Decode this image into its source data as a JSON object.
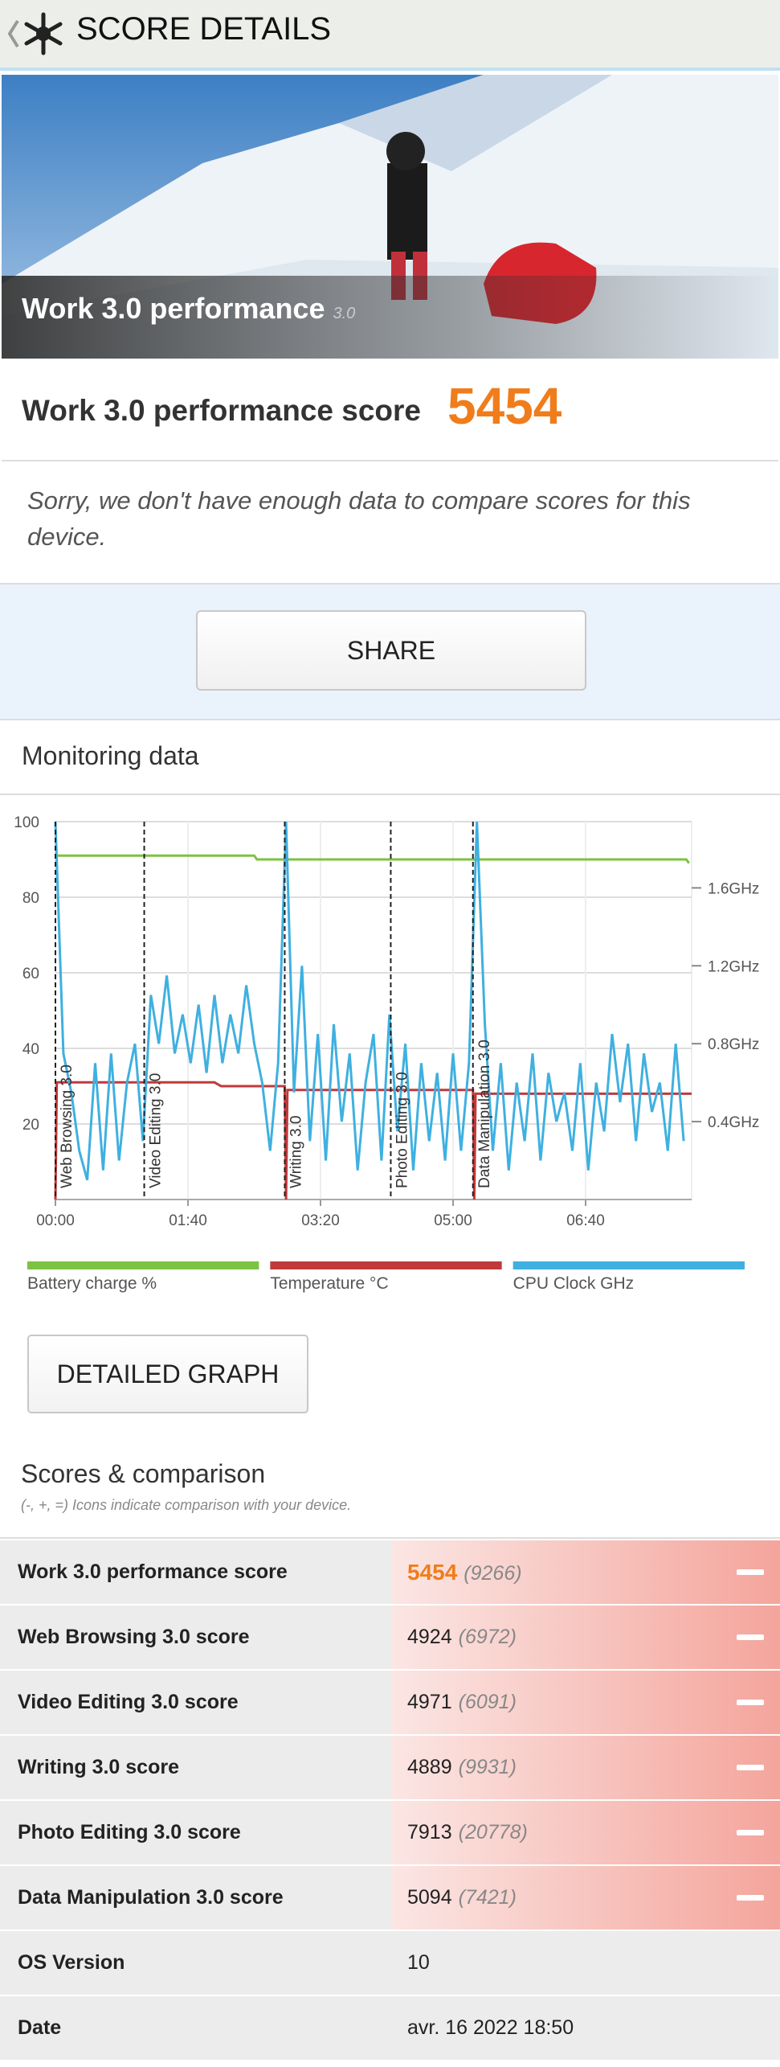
{
  "header": {
    "title": "SCORE DETAILS"
  },
  "hero": {
    "title": "Work 3.0 performance",
    "version": "3.0"
  },
  "score": {
    "label": "Work 3.0 performance score",
    "value": 5454
  },
  "notice": "Sorry, we don't have enough data to compare scores for this device.",
  "share_button": "SHARE",
  "monitoring_title": "Monitoring data",
  "chart_data": {
    "type": "line",
    "xlim": [
      0,
      480
    ],
    "xticks": [
      {
        "value": 0,
        "label": "00:00"
      },
      {
        "value": 100,
        "label": "01:40"
      },
      {
        "value": 200,
        "label": "03:20"
      },
      {
        "value": 300,
        "label": "05:00"
      },
      {
        "value": 400,
        "label": "06:40"
      }
    ],
    "ylim": [
      0,
      100
    ],
    "yticks": [
      20,
      40,
      60,
      80,
      100
    ],
    "y2lim": [
      0,
      1.94
    ],
    "y2ticks": [
      {
        "value": 0.4,
        "label": "0.4GHz"
      },
      {
        "value": 0.8,
        "label": "0.8GHz"
      },
      {
        "value": 1.2,
        "label": "1.2GHz"
      },
      {
        "value": 1.6,
        "label": "1.6GHz"
      }
    ],
    "grid": true,
    "markers": [
      {
        "x": 0,
        "label": "Web Browsing 3.0"
      },
      {
        "x": 67,
        "label": "Video Editing 3.0"
      },
      {
        "x": 173,
        "label": "Writing 3.0"
      },
      {
        "x": 253,
        "label": "Photo Editing 3.0"
      },
      {
        "x": 315,
        "label": "Data Manipulation 3.0"
      }
    ],
    "series": [
      {
        "name": "Battery charge %",
        "color": "#7dc242",
        "x": [
          0,
          150,
          152,
          476,
          478
        ],
        "values": [
          91,
          91,
          90,
          90,
          89
        ]
      },
      {
        "name": "Temperature °C",
        "color": "#c0393b",
        "x": [
          0,
          1,
          120,
          125,
          173,
          174,
          175,
          315,
          316,
          317,
          480
        ],
        "values": [
          0,
          31,
          31,
          30,
          30,
          0,
          29,
          29,
          0,
          28,
          28
        ]
      },
      {
        "name": "CPU Clock GHz",
        "color": "#3fb0e0",
        "axis": "y2",
        "x": [
          0,
          6,
          12,
          18,
          24,
          30,
          36,
          42,
          48,
          54,
          60,
          66,
          72,
          78,
          84,
          90,
          96,
          102,
          108,
          114,
          120,
          126,
          132,
          138,
          144,
          150,
          156,
          162,
          168,
          174,
          180,
          186,
          192,
          198,
          204,
          210,
          216,
          222,
          228,
          234,
          240,
          246,
          252,
          258,
          264,
          270,
          276,
          282,
          288,
          294,
          300,
          306,
          312,
          318,
          324,
          330,
          336,
          342,
          348,
          354,
          360,
          366,
          372,
          378,
          384,
          390,
          396,
          402,
          408,
          414,
          420,
          426,
          432,
          438,
          444,
          450,
          456,
          462,
          468,
          474
        ],
        "values": [
          1.94,
          0.75,
          0.55,
          0.25,
          0.1,
          0.7,
          0.15,
          0.75,
          0.2,
          0.6,
          0.8,
          0.3,
          1.05,
          0.8,
          1.15,
          0.75,
          0.95,
          0.7,
          1.0,
          0.65,
          1.05,
          0.7,
          0.95,
          0.75,
          1.1,
          0.8,
          0.6,
          0.25,
          0.7,
          1.94,
          0.55,
          1.2,
          0.3,
          0.85,
          0.2,
          0.9,
          0.4,
          0.75,
          0.15,
          0.6,
          0.85,
          0.2,
          0.95,
          0.35,
          0.8,
          0.15,
          0.7,
          0.3,
          0.65,
          0.2,
          0.75,
          0.25,
          0.7,
          1.94,
          0.9,
          0.25,
          0.7,
          0.15,
          0.6,
          0.3,
          0.75,
          0.2,
          0.65,
          0.4,
          0.55,
          0.25,
          0.7,
          0.15,
          0.6,
          0.35,
          0.85,
          0.5,
          0.8,
          0.3,
          0.75,
          0.45,
          0.6,
          0.25,
          0.8,
          0.3
        ]
      }
    ]
  },
  "detailed_button": "DETAILED GRAPH",
  "comparison": {
    "title": "Scores & comparison",
    "subtitle": "(-, +, =) Icons indicate comparison with your device.",
    "rows": [
      {
        "label": "Work 3.0 performance score",
        "score": 5454,
        "reference": "(9266)"
      },
      {
        "label": "Web Browsing 3.0 score",
        "score": 4924,
        "reference": "(6972)"
      },
      {
        "label": "Video Editing 3.0 score",
        "score": 4971,
        "reference": "(6091)"
      },
      {
        "label": "Writing 3.0 score",
        "score": 4889,
        "reference": "(9931)"
      },
      {
        "label": "Photo Editing 3.0 score",
        "score": 7913,
        "reference": "(20778)"
      },
      {
        "label": "Data Manipulation 3.0 score",
        "score": 5094,
        "reference": "(7421)"
      }
    ],
    "info": [
      {
        "label": "OS Version",
        "value": "10"
      },
      {
        "label": "Date",
        "value": "avr. 16 2022 18:50"
      }
    ]
  }
}
